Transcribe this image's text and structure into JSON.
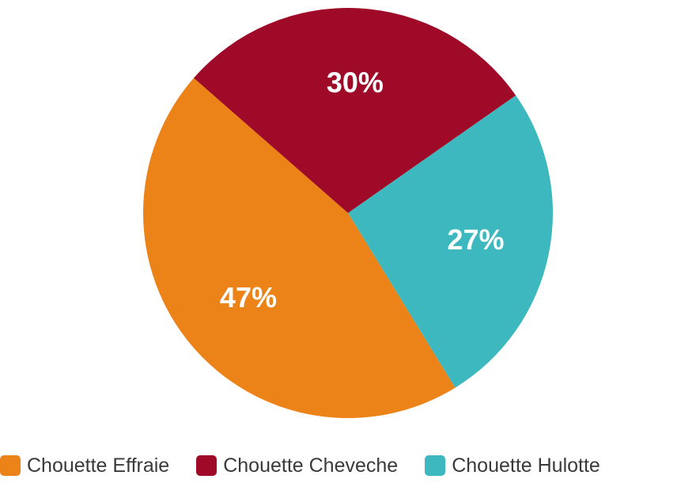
{
  "chart_data": {
    "type": "pie",
    "title": "",
    "slices": [
      {
        "label": "Chouette Effraie",
        "value": 47,
        "value_label": "47%",
        "color": "#EC8318"
      },
      {
        "label": "Chouette Cheveche",
        "value": 30,
        "value_label": "30%",
        "color": "#9E0A28"
      },
      {
        "label": "Chouette Hulotte",
        "value": 27,
        "value_label": "27%",
        "color": "#3CB8BE"
      }
    ],
    "legend_position": "bottom"
  }
}
